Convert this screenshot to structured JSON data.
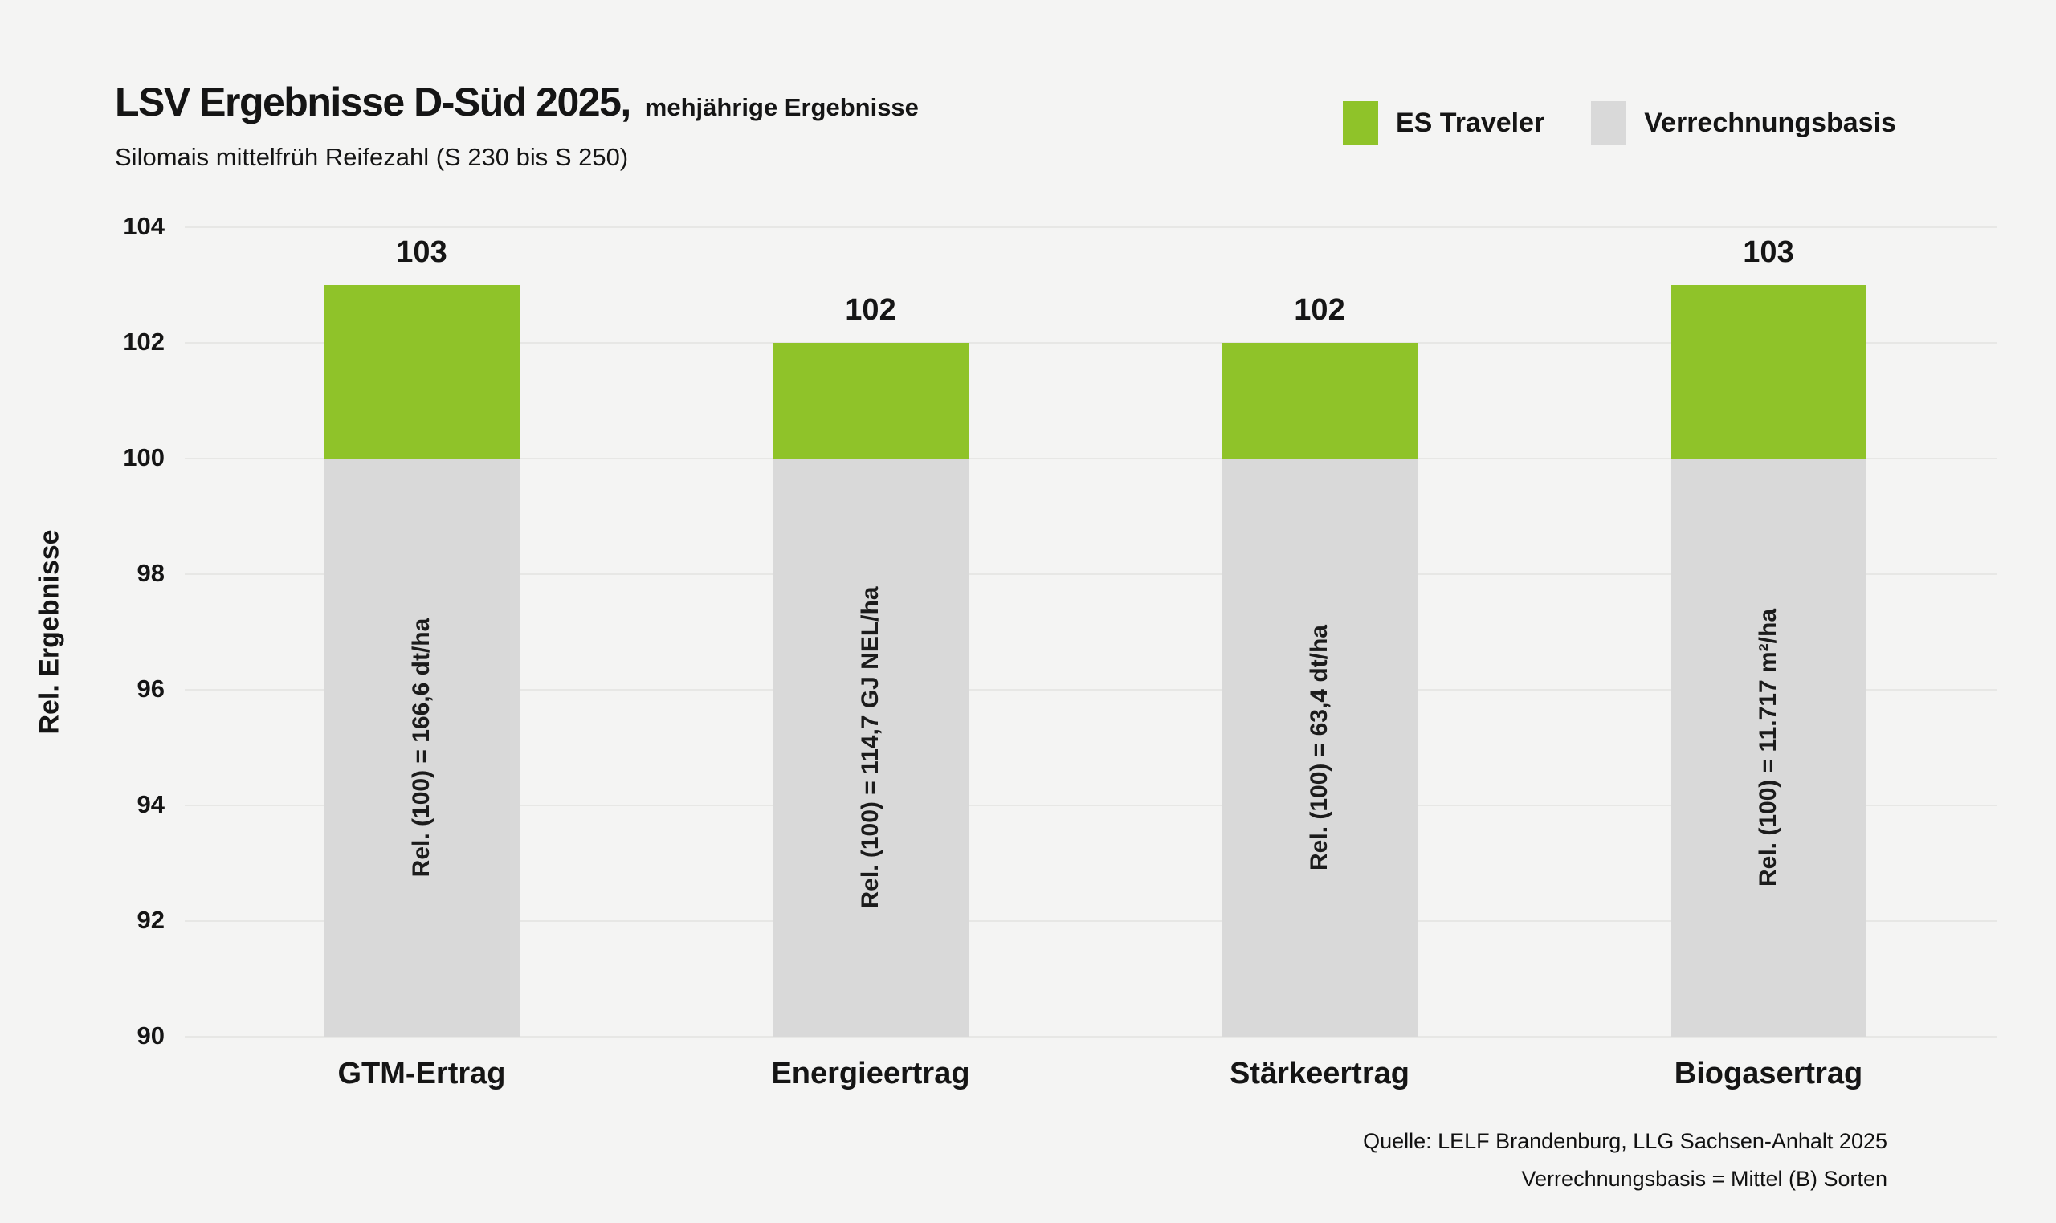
{
  "header": {
    "title": "LSV Ergebnisse D-Süd 2025,",
    "title_suffix": "mehjährige Ergebnisse",
    "subtitle": "Silomais mittelfrüh Reifezahl (S 230 bis S 250)"
  },
  "legend": [
    {
      "label": "ES Traveler",
      "color": "#8fc329"
    },
    {
      "label": "Verrechnungsbasis",
      "color": "#d9d9d9"
    }
  ],
  "footer": {
    "source": "Quelle: LELF Brandenburg, LLG Sachsen-Anhalt 2025",
    "note": "Verrechnungsbasis = Mittel (B) Sorten"
  },
  "chart_data": {
    "type": "bar",
    "stacked": true,
    "title": "LSV Ergebnisse D-Süd 2025, mehjährige Ergebnisse",
    "subtitle": "Silomais mittelfrüh Reifezahl (S 230 bis S 250)",
    "categories": [
      "GTM-Ertrag",
      "Energieertrag",
      "Stärkeertrag",
      "Biogasertrag"
    ],
    "series": [
      {
        "name": "Verrechnungsbasis",
        "values": [
          100,
          100,
          100,
          100
        ],
        "color": "#d9d9d9"
      },
      {
        "name": "ES Traveler",
        "values": [
          103,
          102,
          102,
          103
        ],
        "color": "#8fc329"
      }
    ],
    "bar_value_labels": [
      "103",
      "102",
      "102",
      "103"
    ],
    "bar_annotations": [
      "Rel. (100) = 166,6 dt/ha",
      "Rel. (100) = 114,7 GJ NEL/ha",
      "Rel. (100) = 63,4 dt/ha",
      "Rel. (100) = 11.717 m²/ha"
    ],
    "xlabel": "",
    "ylabel": "Rel. Ergebnisse",
    "ylim": [
      90,
      104
    ],
    "yticks": [
      104,
      102,
      100,
      98,
      96,
      94,
      92,
      90
    ],
    "grid": "horizontal",
    "legend_position": "top-right"
  },
  "colors": {
    "background": "#f4f4f3",
    "grid": "#e7e7e5",
    "text": "#151515",
    "accent_green": "#8fc329",
    "base_gray": "#d9d9d9"
  }
}
